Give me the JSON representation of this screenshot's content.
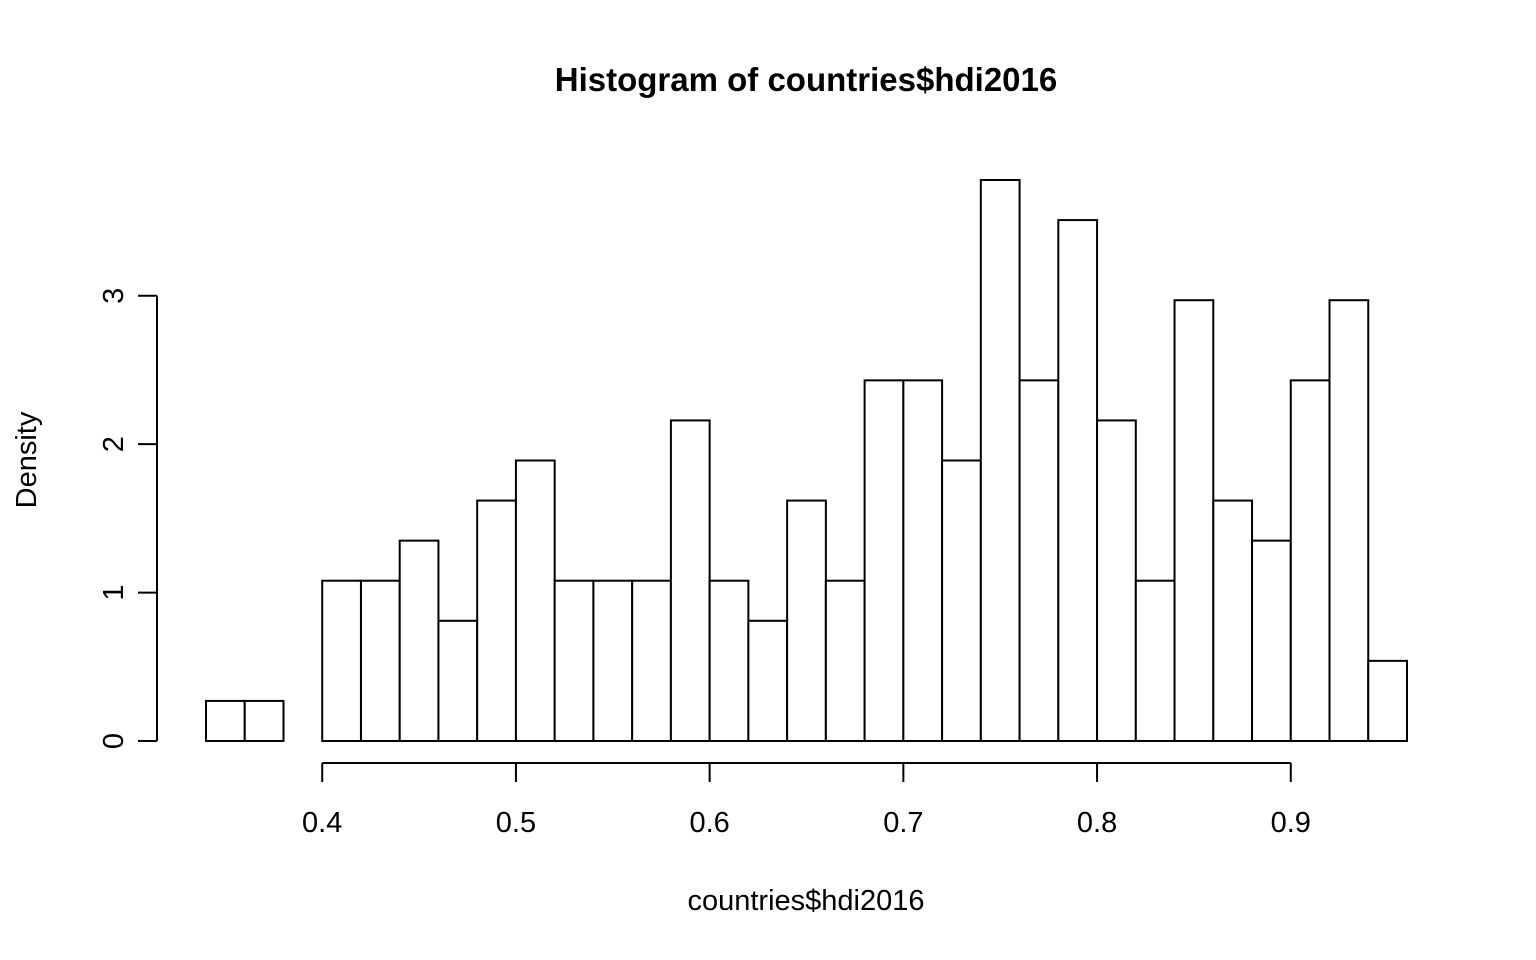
{
  "chart_data": {
    "type": "bar",
    "title": "Histogram of countries$hdi2016",
    "xlabel": "countries$hdi2016",
    "ylabel": "Density",
    "bin_width": 0.02,
    "bins": [
      {
        "start": 0.34,
        "end": 0.36,
        "density": 0.27
      },
      {
        "start": 0.36,
        "end": 0.38,
        "density": 0.27
      },
      {
        "start": 0.38,
        "end": 0.4,
        "density": 0.0
      },
      {
        "start": 0.4,
        "end": 0.42,
        "density": 1.08
      },
      {
        "start": 0.42,
        "end": 0.44,
        "density": 1.08
      },
      {
        "start": 0.44,
        "end": 0.46,
        "density": 1.35
      },
      {
        "start": 0.46,
        "end": 0.48,
        "density": 0.81
      },
      {
        "start": 0.48,
        "end": 0.5,
        "density": 1.62
      },
      {
        "start": 0.5,
        "end": 0.52,
        "density": 1.89
      },
      {
        "start": 0.52,
        "end": 0.54,
        "density": 1.08
      },
      {
        "start": 0.54,
        "end": 0.56,
        "density": 1.08
      },
      {
        "start": 0.56,
        "end": 0.58,
        "density": 1.08
      },
      {
        "start": 0.58,
        "end": 0.6,
        "density": 2.16
      },
      {
        "start": 0.6,
        "end": 0.62,
        "density": 1.08
      },
      {
        "start": 0.62,
        "end": 0.64,
        "density": 0.81
      },
      {
        "start": 0.64,
        "end": 0.66,
        "density": 1.62
      },
      {
        "start": 0.66,
        "end": 0.68,
        "density": 1.08
      },
      {
        "start": 0.68,
        "end": 0.7,
        "density": 2.43
      },
      {
        "start": 0.7,
        "end": 0.72,
        "density": 2.43
      },
      {
        "start": 0.72,
        "end": 0.74,
        "density": 1.89
      },
      {
        "start": 0.74,
        "end": 0.76,
        "density": 3.78
      },
      {
        "start": 0.76,
        "end": 0.78,
        "density": 2.43
      },
      {
        "start": 0.78,
        "end": 0.8,
        "density": 3.51
      },
      {
        "start": 0.8,
        "end": 0.82,
        "density": 2.16
      },
      {
        "start": 0.82,
        "end": 0.84,
        "density": 1.08
      },
      {
        "start": 0.84,
        "end": 0.86,
        "density": 2.97
      },
      {
        "start": 0.86,
        "end": 0.88,
        "density": 1.62
      },
      {
        "start": 0.88,
        "end": 0.9,
        "density": 1.35
      },
      {
        "start": 0.9,
        "end": 0.92,
        "density": 2.43
      },
      {
        "start": 0.92,
        "end": 0.94,
        "density": 2.97
      },
      {
        "start": 0.94,
        "end": 0.96,
        "density": 0.54
      }
    ],
    "x_ticks": [
      "0.4",
      "0.5",
      "0.6",
      "0.7",
      "0.8",
      "0.9"
    ],
    "y_ticks": [
      "0",
      "1",
      "2",
      "3"
    ],
    "xlim": [
      0.34,
      0.96
    ],
    "ylim": [
      0,
      3.78
    ],
    "grid": false,
    "colors": {
      "bar_fill": "#ffffff",
      "bar_stroke": "#000000"
    }
  }
}
